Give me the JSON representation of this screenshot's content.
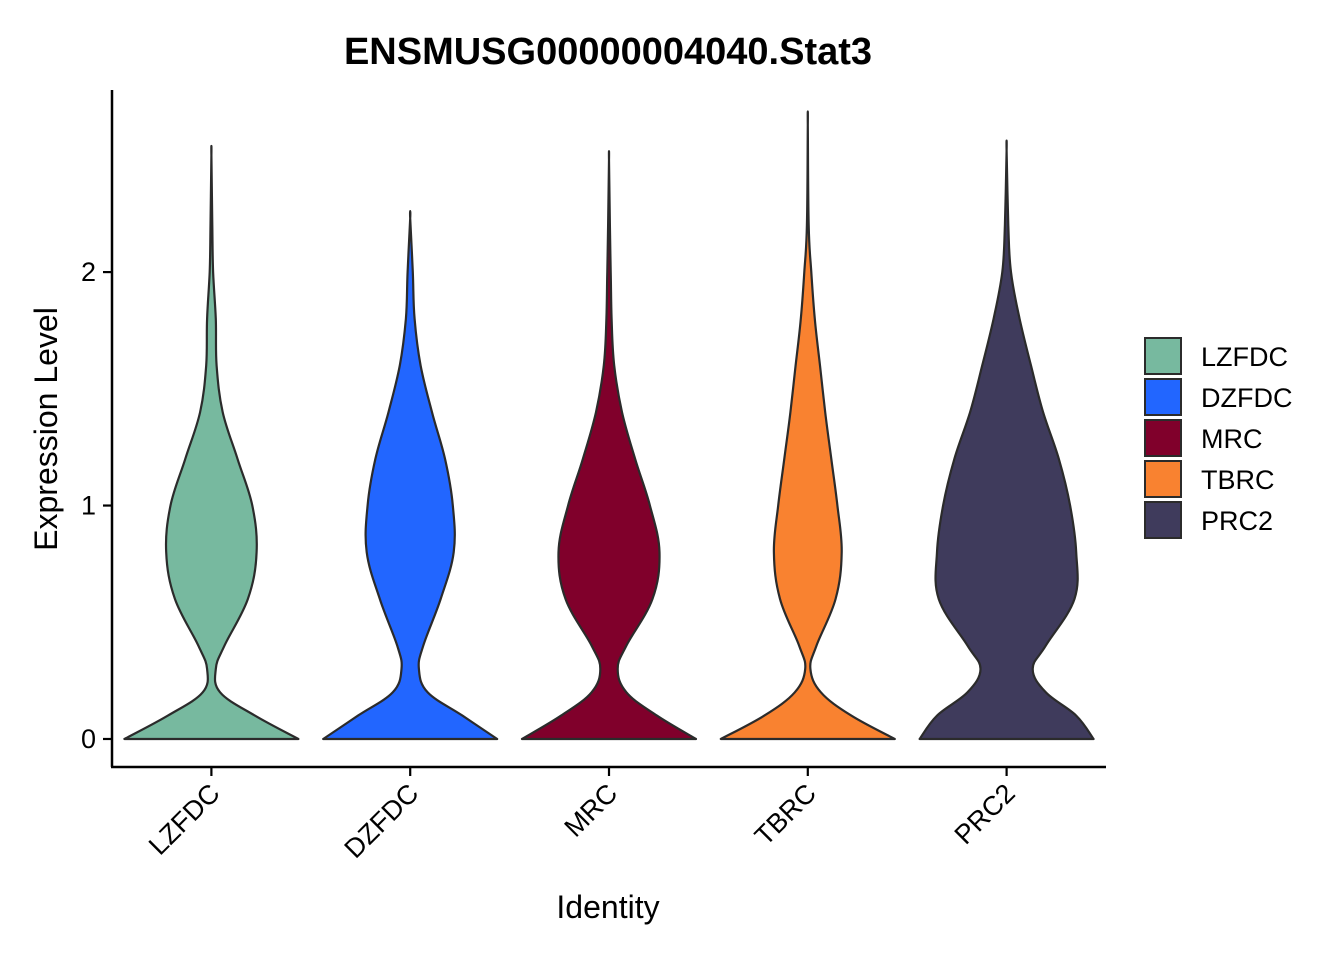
{
  "chart_data": {
    "type": "violin",
    "title": "ENSMUSG00000004040.Stat3",
    "xlabel": "Identity",
    "ylabel": "Expression Level",
    "ylim": [
      -0.12,
      2.78
    ],
    "yticks": [
      0,
      1,
      2
    ],
    "categories": [
      "LZFDC",
      "DZFDC",
      "MRC",
      "TBRC",
      "PRC2"
    ],
    "series": [
      {
        "name": "LZFDC",
        "color": "#77B99F",
        "max": 2.5,
        "profile": [
          [
            0,
            1.0
          ],
          [
            0.1,
            0.5
          ],
          [
            0.2,
            0.1
          ],
          [
            0.3,
            0.05
          ],
          [
            0.4,
            0.15
          ],
          [
            0.6,
            0.42
          ],
          [
            0.8,
            0.52
          ],
          [
            1.0,
            0.47
          ],
          [
            1.2,
            0.3
          ],
          [
            1.4,
            0.13
          ],
          [
            1.6,
            0.06
          ],
          [
            1.8,
            0.05
          ],
          [
            2.0,
            0.02
          ],
          [
            2.2,
            0.01
          ],
          [
            2.5,
            0.0
          ]
        ]
      },
      {
        "name": "DZFDC",
        "color": "#2266FF",
        "max": 2.23,
        "profile": [
          [
            0,
            1.0
          ],
          [
            0.1,
            0.6
          ],
          [
            0.2,
            0.2
          ],
          [
            0.3,
            0.1
          ],
          [
            0.4,
            0.15
          ],
          [
            0.6,
            0.35
          ],
          [
            0.8,
            0.5
          ],
          [
            1.0,
            0.49
          ],
          [
            1.2,
            0.4
          ],
          [
            1.4,
            0.25
          ],
          [
            1.6,
            0.12
          ],
          [
            1.8,
            0.05
          ],
          [
            2.0,
            0.03
          ],
          [
            2.23,
            0.0
          ]
        ]
      },
      {
        "name": "MRC",
        "color": "#80002B",
        "max": 2.48,
        "profile": [
          [
            0,
            1.0
          ],
          [
            0.1,
            0.55
          ],
          [
            0.2,
            0.2
          ],
          [
            0.3,
            0.1
          ],
          [
            0.4,
            0.2
          ],
          [
            0.6,
            0.5
          ],
          [
            0.8,
            0.58
          ],
          [
            1.0,
            0.47
          ],
          [
            1.2,
            0.3
          ],
          [
            1.4,
            0.15
          ],
          [
            1.6,
            0.06
          ],
          [
            1.8,
            0.03
          ],
          [
            2.0,
            0.02
          ],
          [
            2.2,
            0.01
          ],
          [
            2.48,
            0.0
          ]
        ]
      },
      {
        "name": "TBRC",
        "color": "#F98230",
        "max": 2.63,
        "profile": [
          [
            0,
            1.0
          ],
          [
            0.1,
            0.5
          ],
          [
            0.2,
            0.15
          ],
          [
            0.3,
            0.03
          ],
          [
            0.4,
            0.1
          ],
          [
            0.6,
            0.32
          ],
          [
            0.8,
            0.39
          ],
          [
            1.0,
            0.34
          ],
          [
            1.2,
            0.27
          ],
          [
            1.4,
            0.2
          ],
          [
            1.6,
            0.14
          ],
          [
            1.8,
            0.08
          ],
          [
            2.0,
            0.04
          ],
          [
            2.2,
            0.01
          ],
          [
            2.63,
            0.0
          ]
        ]
      },
      {
        "name": "PRC2",
        "color": "#3F3B5C",
        "max": 2.52,
        "profile": [
          [
            0,
            1.0
          ],
          [
            0.1,
            0.8
          ],
          [
            0.2,
            0.45
          ],
          [
            0.3,
            0.3
          ],
          [
            0.4,
            0.45
          ],
          [
            0.6,
            0.78
          ],
          [
            0.8,
            0.8
          ],
          [
            1.0,
            0.73
          ],
          [
            1.2,
            0.6
          ],
          [
            1.4,
            0.42
          ],
          [
            1.6,
            0.28
          ],
          [
            1.8,
            0.15
          ],
          [
            2.0,
            0.05
          ],
          [
            2.2,
            0.02
          ],
          [
            2.52,
            0.0
          ]
        ]
      }
    ],
    "legend": {
      "position": "right"
    },
    "grid": false
  }
}
